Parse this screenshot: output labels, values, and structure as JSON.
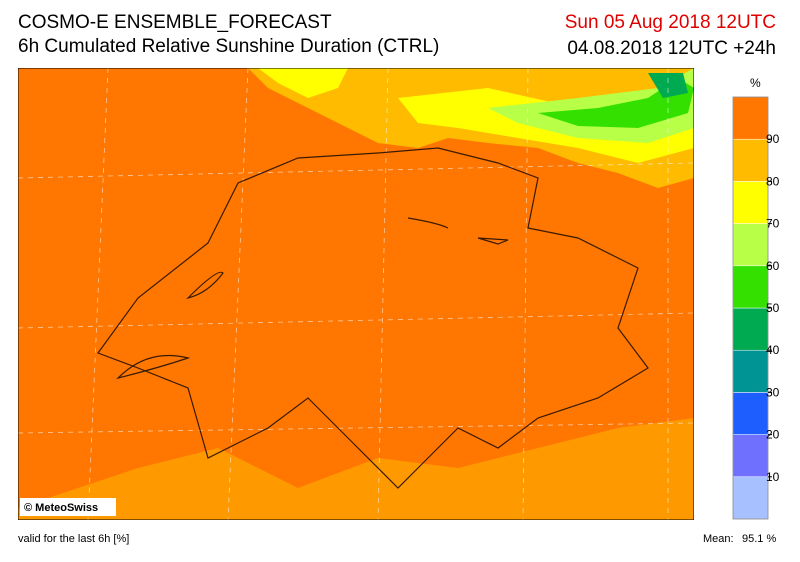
{
  "header": {
    "title": "COSMO-E ENSEMBLE_FORECAST",
    "subtitle": "6h Cumulated Relative Sunshine Duration (CTRL)",
    "valid_time": "Sun 05 Aug 2018 12UTC",
    "run": "04.08.2018 12UTC +24h"
  },
  "legend": {
    "unit": "%",
    "ticks": [
      10,
      20,
      30,
      40,
      50,
      60,
      70,
      80,
      90
    ],
    "colors": [
      "#a7c0ff",
      "#7070ff",
      "#1e5eff",
      "#009494",
      "#00aa50",
      "#33e000",
      "#b8ff48",
      "#ffff00",
      "#ffbb00",
      "#ff7700"
    ]
  },
  "map": {
    "copyright": "© MeteoSwiss"
  },
  "footer": {
    "note": "valid for the last 6h [%]",
    "mean_label": "Mean:",
    "mean_value": "95.1 %"
  }
}
